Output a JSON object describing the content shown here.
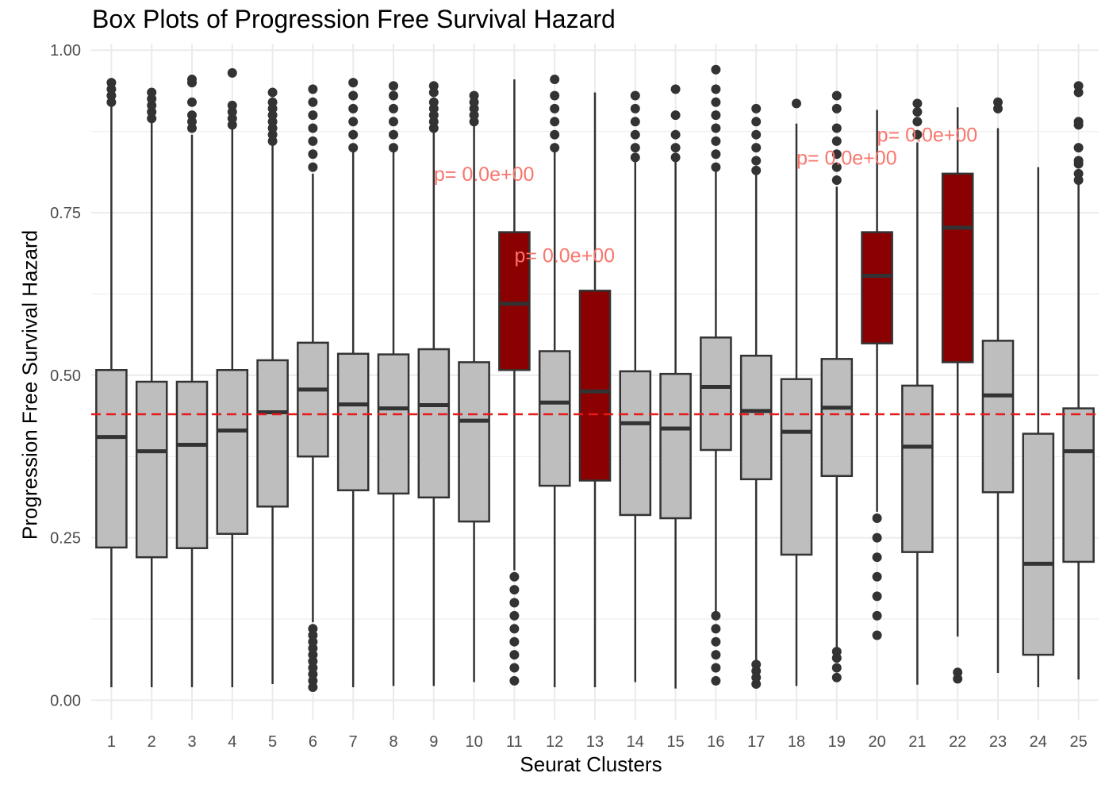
{
  "chart_data": {
    "type": "box",
    "title": "Box Plots of Progression Free Survival Hazard",
    "xlabel": "Seurat Clusters",
    "ylabel": "Progression Free Survival Hazard",
    "ylim": [
      -0.03,
      1.01
    ],
    "yticks": [
      0.0,
      0.25,
      0.5,
      0.75,
      1.0
    ],
    "ytick_labels": [
      "0.00",
      "0.25",
      "0.50",
      "0.75",
      "1.00"
    ],
    "grid": true,
    "reference_line": {
      "y": 0.44,
      "style": "dashed",
      "color": "#e41a1c"
    },
    "colors": {
      "default_fill": "#bebebe",
      "highlight_fill": "#8b0000",
      "outline": "#333333",
      "annotation": "#f8766d",
      "grid": "#ebebeb"
    },
    "categories": [
      "1",
      "2",
      "3",
      "4",
      "5",
      "6",
      "7",
      "8",
      "9",
      "10",
      "11",
      "12",
      "13",
      "14",
      "15",
      "16",
      "17",
      "18",
      "19",
      "20",
      "21",
      "22",
      "23",
      "24",
      "25"
    ],
    "boxes": [
      {
        "cluster": "1",
        "whisker_low": 0.02,
        "q1": 0.235,
        "median": 0.405,
        "q3": 0.508,
        "whisker_high": 0.915,
        "highlight": false,
        "outliers": [
          0.92,
          0.93,
          0.94,
          0.95
        ]
      },
      {
        "cluster": "2",
        "whisker_low": 0.02,
        "q1": 0.22,
        "median": 0.383,
        "q3": 0.49,
        "whisker_high": 0.89,
        "highlight": false,
        "outliers": [
          0.895,
          0.905,
          0.915,
          0.925,
          0.935
        ]
      },
      {
        "cluster": "3",
        "whisker_low": 0.02,
        "q1": 0.234,
        "median": 0.393,
        "q3": 0.49,
        "whisker_high": 0.87,
        "highlight": false,
        "outliers": [
          0.88,
          0.89,
          0.9,
          0.92,
          0.95,
          0.955
        ]
      },
      {
        "cluster": "4",
        "whisker_low": 0.02,
        "q1": 0.256,
        "median": 0.415,
        "q3": 0.508,
        "whisker_high": 0.88,
        "highlight": false,
        "outliers": [
          0.885,
          0.895,
          0.905,
          0.915,
          0.965
        ]
      },
      {
        "cluster": "5",
        "whisker_low": 0.025,
        "q1": 0.298,
        "median": 0.443,
        "q3": 0.523,
        "whisker_high": 0.855,
        "highlight": false,
        "outliers": [
          0.86,
          0.87,
          0.88,
          0.89,
          0.9,
          0.91,
          0.92,
          0.935
        ]
      },
      {
        "cluster": "6",
        "whisker_low": 0.12,
        "q1": 0.375,
        "median": 0.478,
        "q3": 0.55,
        "whisker_high": 0.81,
        "highlight": false,
        "outliers": [
          0.02,
          0.03,
          0.04,
          0.05,
          0.06,
          0.07,
          0.08,
          0.09,
          0.1,
          0.11,
          0.82,
          0.84,
          0.86,
          0.88,
          0.9,
          0.92,
          0.94
        ]
      },
      {
        "cluster": "7",
        "whisker_low": 0.02,
        "q1": 0.323,
        "median": 0.455,
        "q3": 0.533,
        "whisker_high": 0.845,
        "highlight": false,
        "outliers": [
          0.85,
          0.87,
          0.89,
          0.91,
          0.93,
          0.95
        ]
      },
      {
        "cluster": "8",
        "whisker_low": 0.022,
        "q1": 0.318,
        "median": 0.449,
        "q3": 0.532,
        "whisker_high": 0.845,
        "highlight": false,
        "outliers": [
          0.85,
          0.87,
          0.89,
          0.91,
          0.93,
          0.945
        ]
      },
      {
        "cluster": "9",
        "whisker_low": 0.022,
        "q1": 0.312,
        "median": 0.454,
        "q3": 0.54,
        "whisker_high": 0.875,
        "highlight": false,
        "outliers": [
          0.88,
          0.89,
          0.9,
          0.91,
          0.92,
          0.935,
          0.945
        ]
      },
      {
        "cluster": "10",
        "whisker_low": 0.028,
        "q1": 0.275,
        "median": 0.43,
        "q3": 0.52,
        "whisker_high": 0.885,
        "highlight": false,
        "outliers": [
          0.89,
          0.9,
          0.91,
          0.92,
          0.93
        ]
      },
      {
        "cluster": "11",
        "whisker_low": 0.2,
        "q1": 0.508,
        "median": 0.61,
        "q3": 0.72,
        "whisker_high": 0.955,
        "highlight": true,
        "outliers": [
          0.03,
          0.05,
          0.07,
          0.09,
          0.11,
          0.13,
          0.15,
          0.17,
          0.19
        ]
      },
      {
        "cluster": "12",
        "whisker_low": 0.02,
        "q1": 0.33,
        "median": 0.458,
        "q3": 0.537,
        "whisker_high": 0.845,
        "highlight": false,
        "outliers": [
          0.85,
          0.87,
          0.89,
          0.91,
          0.93,
          0.955
        ]
      },
      {
        "cluster": "13",
        "whisker_low": 0.02,
        "q1": 0.338,
        "median": 0.475,
        "q3": 0.63,
        "whisker_high": 0.935,
        "highlight": true,
        "outliers": []
      },
      {
        "cluster": "14",
        "whisker_low": 0.028,
        "q1": 0.285,
        "median": 0.426,
        "q3": 0.506,
        "whisker_high": 0.83,
        "highlight": false,
        "outliers": [
          0.835,
          0.85,
          0.87,
          0.89,
          0.91,
          0.93
        ]
      },
      {
        "cluster": "15",
        "whisker_low": 0.018,
        "q1": 0.28,
        "median": 0.418,
        "q3": 0.502,
        "whisker_high": 0.83,
        "highlight": false,
        "outliers": [
          0.835,
          0.85,
          0.87,
          0.9,
          0.94
        ]
      },
      {
        "cluster": "16",
        "whisker_low": 0.13,
        "q1": 0.385,
        "median": 0.482,
        "q3": 0.558,
        "whisker_high": 0.815,
        "highlight": false,
        "outliers": [
          0.03,
          0.05,
          0.07,
          0.09,
          0.11,
          0.13,
          0.82,
          0.84,
          0.86,
          0.88,
          0.9,
          0.92,
          0.94,
          0.97
        ]
      },
      {
        "cluster": "17",
        "whisker_low": 0.06,
        "q1": 0.34,
        "median": 0.445,
        "q3": 0.53,
        "whisker_high": 0.81,
        "highlight": false,
        "outliers": [
          0.025,
          0.035,
          0.045,
          0.055,
          0.815,
          0.83,
          0.85,
          0.87,
          0.89,
          0.91
        ]
      },
      {
        "cluster": "18",
        "whisker_low": 0.022,
        "q1": 0.224,
        "median": 0.413,
        "q3": 0.494,
        "whisker_high": 0.887,
        "highlight": false,
        "outliers": [
          0.918
        ]
      },
      {
        "cluster": "19",
        "whisker_low": 0.08,
        "q1": 0.345,
        "median": 0.45,
        "q3": 0.525,
        "whisker_high": 0.79,
        "highlight": false,
        "outliers": [
          0.035,
          0.05,
          0.065,
          0.075,
          0.8,
          0.82,
          0.84,
          0.86,
          0.88,
          0.91,
          0.93
        ]
      },
      {
        "cluster": "20",
        "whisker_low": 0.29,
        "q1": 0.549,
        "median": 0.653,
        "q3": 0.72,
        "whisker_high": 0.908,
        "highlight": true,
        "outliers": [
          0.1,
          0.13,
          0.16,
          0.19,
          0.22,
          0.25,
          0.28
        ]
      },
      {
        "cluster": "21",
        "whisker_low": 0.024,
        "q1": 0.228,
        "median": 0.39,
        "q3": 0.484,
        "whisker_high": 0.858,
        "highlight": false,
        "outliers": [
          0.87,
          0.89,
          0.905,
          0.918
        ]
      },
      {
        "cluster": "22",
        "whisker_low": 0.098,
        "q1": 0.52,
        "median": 0.727,
        "q3": 0.81,
        "whisker_high": 0.912,
        "highlight": true,
        "outliers": [
          0.033,
          0.043
        ]
      },
      {
        "cluster": "23",
        "whisker_low": 0.042,
        "q1": 0.32,
        "median": 0.469,
        "q3": 0.553,
        "whisker_high": 0.88,
        "highlight": false,
        "outliers": [
          0.91,
          0.92
        ]
      },
      {
        "cluster": "24",
        "whisker_low": 0.02,
        "q1": 0.07,
        "median": 0.21,
        "q3": 0.41,
        "whisker_high": 0.82,
        "highlight": false,
        "outliers": []
      },
      {
        "cluster": "25",
        "whisker_low": 0.032,
        "q1": 0.213,
        "median": 0.383,
        "q3": 0.449,
        "whisker_high": 0.795,
        "highlight": false,
        "outliers": [
          0.8,
          0.81,
          0.825,
          0.83,
          0.85,
          0.885,
          0.89,
          0.935,
          0.945
        ]
      }
    ],
    "annotations": [
      {
        "text": "p= 0.0e+00",
        "cluster": "11",
        "y": 0.81,
        "side": "left"
      },
      {
        "text": "p= 0.0e+00",
        "cluster": "13",
        "y": 0.685,
        "side": "left"
      },
      {
        "text": "p= 0.0e+00",
        "cluster": "20",
        "y": 0.835,
        "side": "left"
      },
      {
        "text": "p= 0.0e+00",
        "cluster": "22",
        "y": 0.87,
        "side": "left"
      }
    ]
  }
}
